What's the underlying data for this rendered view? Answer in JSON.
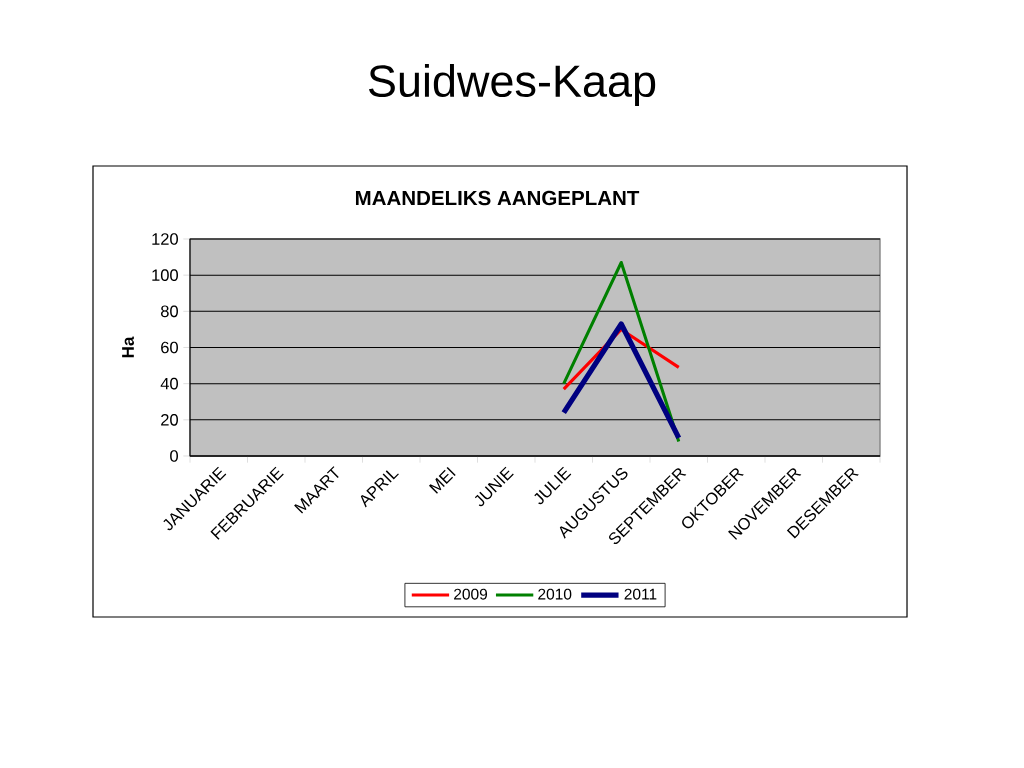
{
  "chart_data": {
    "type": "line",
    "title": "Suidwes-Kaap",
    "subtitle": "MAANDELIKS AANGEPLANT",
    "ylabel": "Ha",
    "categories": [
      "JANUARIE",
      "FEBRUARIE",
      "MAART",
      "APRIL",
      "MEI",
      "JUNIE",
      "JULIE",
      "AUGUSTUS",
      "SEPTEMBER",
      "OKTOBER",
      "NOVEMBER",
      "DESEMBER"
    ],
    "series": [
      {
        "name": "2009",
        "color": "#ff0000",
        "values": [
          null,
          null,
          null,
          null,
          null,
          null,
          37,
          70,
          49,
          null,
          null,
          null
        ]
      },
      {
        "name": "2010",
        "color": "#008000",
        "values": [
          null,
          null,
          null,
          null,
          null,
          null,
          40,
          107,
          8,
          null,
          null,
          null
        ]
      },
      {
        "name": "2011",
        "color": "#000080",
        "values": [
          null,
          null,
          null,
          null,
          null,
          null,
          24,
          73,
          10,
          null,
          null,
          null
        ]
      }
    ],
    "ylim": [
      0,
      120
    ],
    "yticks": [
      0,
      20,
      40,
      60,
      80,
      100,
      120
    ],
    "grid": "y",
    "legend": "bottom",
    "marker": "none",
    "line_style": "solid"
  }
}
